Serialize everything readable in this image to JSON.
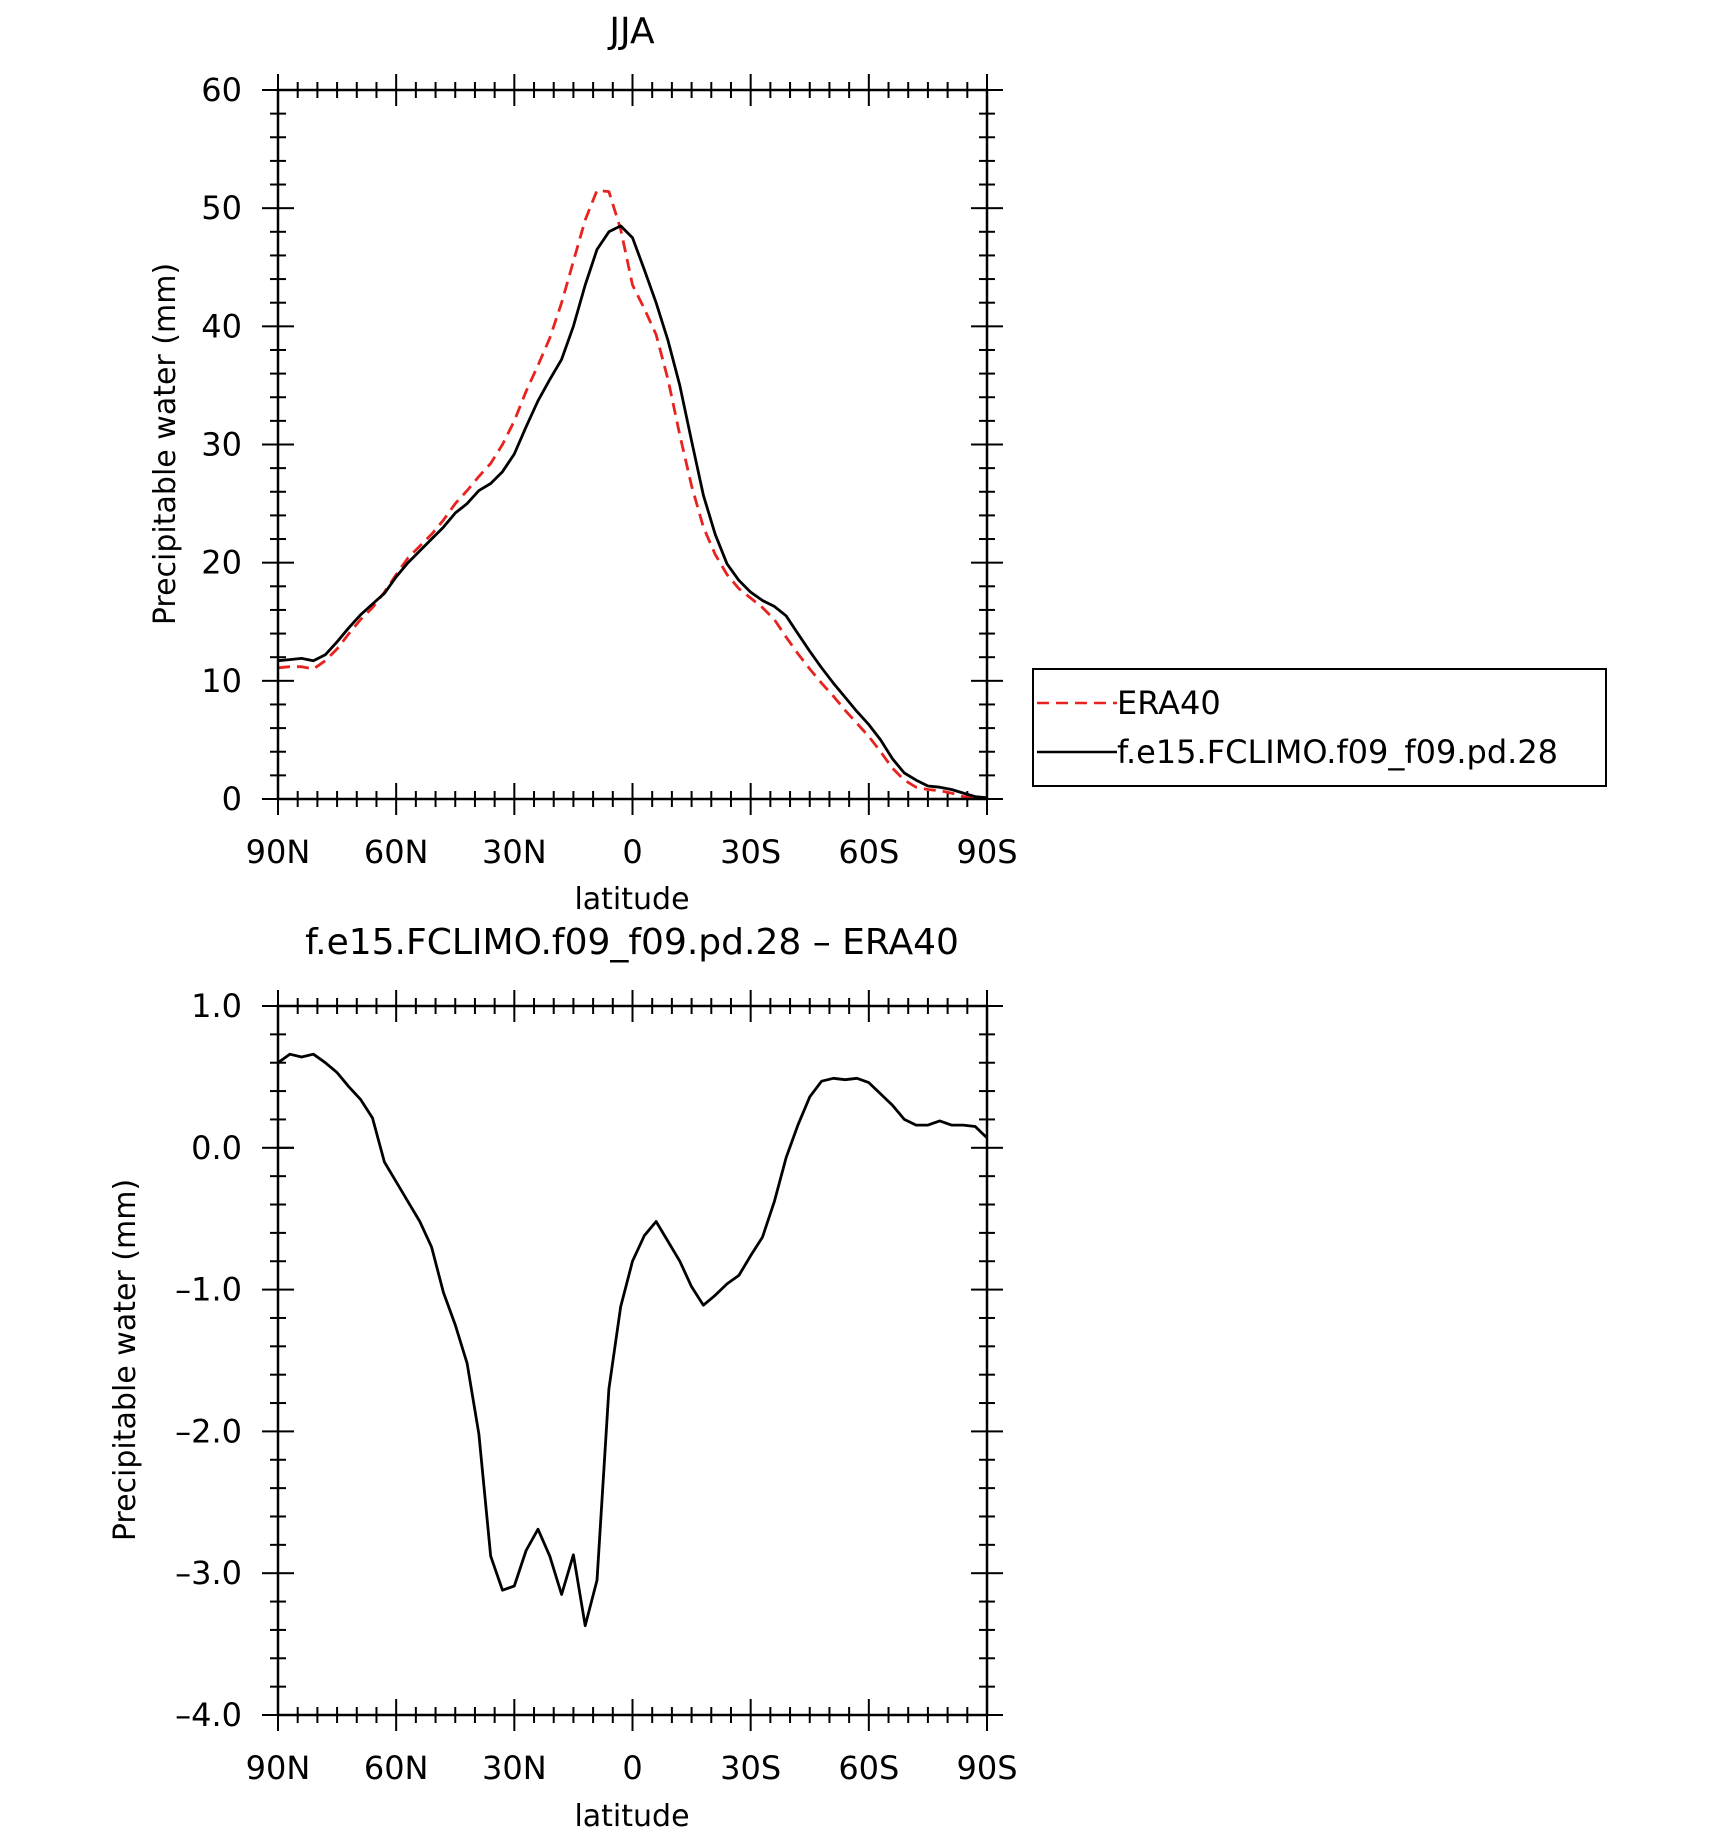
{
  "chart_data": [
    {
      "type": "line",
      "title": "JJA",
      "xlabel": "latitude",
      "ylabel": "Precipitable water (mm)",
      "xlim": [
        90,
        -90
      ],
      "ylim": [
        0,
        60
      ],
      "x_ticks": [
        90,
        60,
        30,
        0,
        -30,
        -60,
        -90
      ],
      "x_tick_labels": [
        "90N",
        "60N",
        "30N",
        "0",
        "30S",
        "60S",
        "90S"
      ],
      "y_ticks": [
        0,
        10,
        20,
        30,
        40,
        50,
        60
      ],
      "y_tick_labels": [
        "0",
        "10",
        "20",
        "30",
        "40",
        "50",
        "60"
      ],
      "grid": false,
      "legend_position": "right",
      "series": [
        {
          "name": "ERA40",
          "color": "#e8231f",
          "style": "dashed",
          "x": [
            90,
            87,
            84,
            81,
            78,
            75,
            72,
            69,
            66,
            63,
            60,
            57,
            54,
            51,
            48,
            45,
            42,
            39,
            36,
            33,
            30,
            27,
            24,
            21,
            18,
            15,
            12,
            9,
            6,
            3,
            0,
            -3,
            -6,
            -9,
            -12,
            -15,
            -18,
            -21,
            -24,
            -27,
            -30,
            -33,
            -36,
            -39,
            -42,
            -45,
            -48,
            -51,
            -54,
            -57,
            -60,
            -63,
            -66,
            -69,
            -72,
            -75,
            -78,
            -81,
            -84,
            -87,
            -90
          ],
          "y": [
            11.1,
            11.2,
            11.2,
            11.0,
            11.7,
            12.7,
            14.0,
            15.2,
            16.2,
            17.5,
            19.0,
            20.4,
            21.4,
            22.4,
            23.6,
            25.0,
            26.1,
            27.3,
            28.4,
            30.0,
            32.0,
            34.5,
            36.7,
            39.0,
            42.0,
            45.5,
            49.0,
            51.5,
            51.4,
            48.2,
            43.5,
            41.5,
            39.3,
            35.5,
            30.8,
            26.5,
            23.0,
            20.7,
            19.0,
            17.8,
            17.0,
            16.2,
            15.2,
            13.7,
            12.3,
            11.0,
            9.8,
            8.7,
            7.5,
            6.4,
            5.3,
            4.0,
            2.6,
            1.6,
            1.0,
            0.8,
            0.7,
            0.5,
            0.2,
            0.1,
            0.0
          ]
        },
        {
          "name": "f.e15.FCLIMO.f09_f09.pd.28",
          "color": "#000000",
          "style": "solid",
          "x": [
            90,
            87,
            84,
            81,
            78,
            75,
            72,
            69,
            66,
            63,
            60,
            57,
            54,
            51,
            48,
            45,
            42,
            39,
            36,
            33,
            30,
            27,
            24,
            21,
            18,
            15,
            12,
            9,
            6,
            3,
            0,
            -3,
            -6,
            -9,
            -12,
            -15,
            -18,
            -21,
            -24,
            -27,
            -30,
            -33,
            -36,
            -39,
            -42,
            -45,
            -48,
            -51,
            -54,
            -57,
            -60,
            -63,
            -66,
            -69,
            -72,
            -75,
            -78,
            -81,
            -84,
            -87,
            -90
          ],
          "y": [
            11.7,
            11.8,
            11.9,
            11.7,
            12.2,
            13.3,
            14.5,
            15.6,
            16.5,
            17.4,
            18.8,
            20.0,
            21.0,
            22.0,
            23.0,
            24.2,
            25.0,
            26.1,
            26.7,
            27.7,
            29.2,
            31.5,
            33.7,
            35.5,
            37.2,
            40.0,
            43.5,
            46.5,
            48.0,
            48.5,
            47.5,
            44.8,
            42.0,
            38.8,
            35.0,
            30.3,
            25.7,
            22.4,
            19.9,
            18.5,
            17.5,
            16.8,
            16.3,
            15.5,
            14.0,
            12.5,
            11.1,
            9.8,
            8.6,
            7.4,
            6.3,
            5.0,
            3.4,
            2.2,
            1.6,
            1.1,
            1.0,
            0.8,
            0.5,
            0.2,
            0.1
          ]
        }
      ]
    },
    {
      "type": "line",
      "title": "f.e15.FCLIMO.f09_f09.pd.28 – ERA40",
      "xlabel": "latitude",
      "ylabel": "Precipitable water (mm)",
      "xlim": [
        90,
        -90
      ],
      "ylim": [
        -4.0,
        1.0
      ],
      "x_ticks": [
        90,
        60,
        30,
        0,
        -30,
        -60,
        -90
      ],
      "x_tick_labels": [
        "90N",
        "60N",
        "30N",
        "0",
        "30S",
        "60S",
        "90S"
      ],
      "y_ticks": [
        1.0,
        0.0,
        -1.0,
        -2.0,
        -3.0,
        -4.0
      ],
      "y_tick_labels": [
        "1.0",
        "0.0",
        "–1.0",
        "–2.0",
        "–3.0",
        "–4.0"
      ],
      "grid": false,
      "series": [
        {
          "color": "#000000",
          "style": "solid",
          "x": [
            90,
            87,
            84,
            81,
            78,
            75,
            72,
            69,
            66,
            63,
            60,
            57,
            54,
            51,
            48,
            45,
            42,
            39,
            36,
            33,
            30,
            27,
            24,
            21,
            18,
            15,
            12,
            9,
            6,
            3,
            0,
            -3,
            -6,
            -9,
            -12,
            -15,
            -18,
            -21,
            -24,
            -27,
            -30,
            -33,
            -36,
            -39,
            -42,
            -45,
            -48,
            -51,
            -54,
            -57,
            -60,
            -63,
            -66,
            -69,
            -72,
            -75,
            -78,
            -81,
            -84,
            -87,
            -90
          ],
          "y": [
            0.6,
            0.66,
            0.64,
            0.66,
            0.6,
            0.53,
            0.43,
            0.34,
            0.21,
            -0.1,
            -0.24,
            -0.38,
            -0.52,
            -0.7,
            -1.02,
            -1.25,
            -1.52,
            -2.02,
            -2.88,
            -3.12,
            -3.09,
            -2.84,
            -2.69,
            -2.88,
            -3.15,
            -2.87,
            -3.37,
            -3.05,
            -1.7,
            -1.12,
            -0.8,
            -0.62,
            -0.52,
            -0.66,
            -0.8,
            -0.98,
            -1.11,
            -1.04,
            -0.96,
            -0.9,
            -0.76,
            -0.63,
            -0.38,
            -0.07,
            0.16,
            0.36,
            0.47,
            0.49,
            0.48,
            0.49,
            0.46,
            0.38,
            0.3,
            0.2,
            0.16,
            0.16,
            0.19,
            0.16,
            0.16,
            0.15,
            0.07
          ]
        }
      ]
    }
  ]
}
